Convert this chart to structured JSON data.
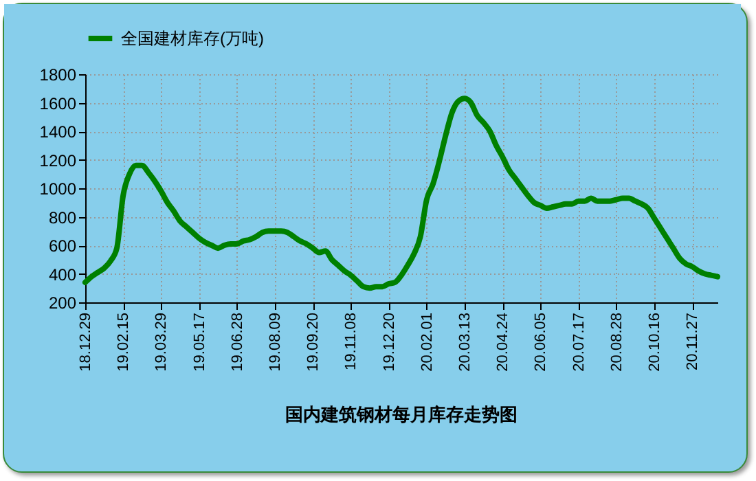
{
  "chart_data": {
    "type": "line",
    "title": "国内建筑钢材每月库存走势图",
    "categories": [
      "18.12.29",
      null,
      null,
      null,
      null,
      null,
      "19.02.15",
      null,
      null,
      null,
      null,
      null,
      "19.03.29",
      null,
      null,
      null,
      null,
      null,
      "19.05.17",
      null,
      null,
      null,
      null,
      null,
      "19.06.28",
      null,
      null,
      null,
      null,
      null,
      "19.08.09",
      null,
      null,
      null,
      null,
      null,
      "19.09.20",
      null,
      null,
      null,
      null,
      null,
      "19.11.08",
      null,
      null,
      null,
      null,
      null,
      "19.12.20",
      null,
      null,
      null,
      null,
      null,
      "20.02.01",
      null,
      null,
      null,
      null,
      null,
      "20.03.13",
      null,
      null,
      null,
      null,
      null,
      "20.04.24",
      null,
      null,
      null,
      null,
      null,
      "20.06.05",
      null,
      null,
      null,
      null,
      null,
      "20.07.17",
      null,
      null,
      null,
      null,
      null,
      "20.08.28",
      null,
      null,
      null,
      null,
      null,
      "20.10.16",
      null,
      null,
      null,
      null,
      null,
      "20.11.27",
      null,
      null,
      null,
      null
    ],
    "series": [
      {
        "name": "全国建材库存(万吨)",
        "color": "#008000",
        "values": [
          340,
          380,
          410,
          440,
          490,
          580,
          950,
          1100,
          1160,
          1160,
          1110,
          1050,
          980,
          900,
          840,
          770,
          730,
          690,
          650,
          620,
          600,
          580,
          600,
          610,
          610,
          630,
          640,
          660,
          690,
          700,
          700,
          700,
          690,
          660,
          630,
          610,
          580,
          550,
          560,
          500,
          460,
          420,
          390,
          350,
          310,
          300,
          310,
          310,
          330,
          340,
          390,
          460,
          540,
          660,
          920,
          1030,
          1190,
          1370,
          1530,
          1610,
          1630,
          1600,
          1510,
          1460,
          1400,
          1300,
          1220,
          1130,
          1070,
          1010,
          950,
          900,
          880,
          860,
          870,
          880,
          890,
          890,
          910,
          910,
          930,
          910,
          910,
          910,
          920,
          930,
          930,
          910,
          890,
          860,
          790,
          720,
          650,
          580,
          510,
          470,
          450,
          420,
          400,
          390,
          380
        ]
      }
    ],
    "ylim": [
      200,
      1800
    ],
    "yticks": [
      200,
      400,
      600,
      800,
      1000,
      1200,
      1400,
      1600,
      1800
    ],
    "grid": true,
    "legend": "top"
  }
}
